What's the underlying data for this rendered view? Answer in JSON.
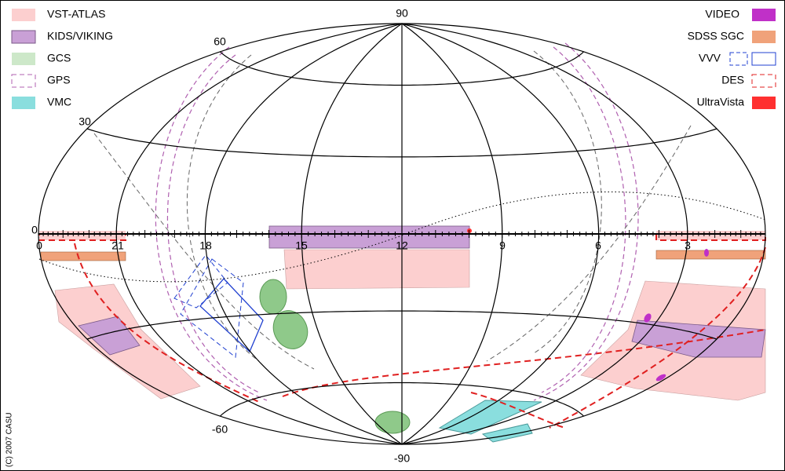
{
  "legend_left": [
    "VST-ATLAS",
    "KIDS/VIKING",
    "GCS",
    "GPS",
    "VMC"
  ],
  "legend_right": [
    "VIDEO",
    "SDSS SGC",
    "VVV",
    "DES",
    "UltraVista"
  ],
  "dec_labels": [
    "90",
    "60",
    "30",
    "0",
    "-60",
    "-90"
  ],
  "ra_labels": [
    "0",
    "21",
    "18",
    "15",
    "12",
    "9",
    "6",
    "3"
  ],
  "copyright": "(C) 2007 CASU"
}
